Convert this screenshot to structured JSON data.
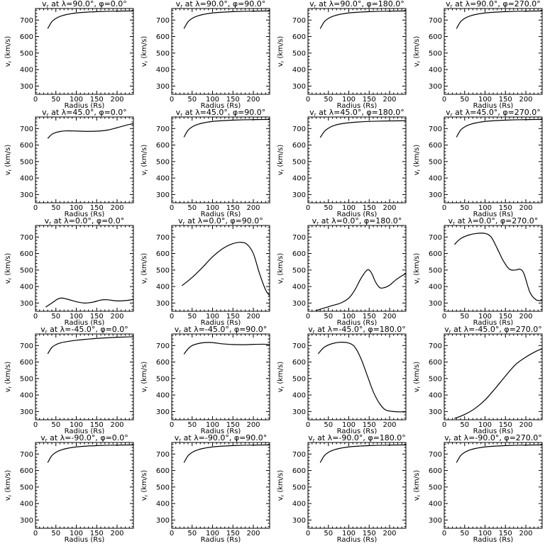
{
  "chart_data": [
    {
      "type": "line",
      "title": "v_r at λ=90.0°, φ=0.0°",
      "xlabel": "Radius (Rs)",
      "ylabel": "v_r (km/s)",
      "xlim": [
        0,
        240
      ],
      "ylim": [
        250,
        770
      ],
      "xticks": [
        0,
        50,
        100,
        150,
        200
      ],
      "yticks": [
        300,
        400,
        500,
        600,
        700
      ],
      "series": [
        {
          "x": [
            30,
            40,
            50,
            60,
            75,
            100,
            125,
            150,
            175,
            200,
            225,
            240
          ],
          "y": [
            648,
            690,
            710,
            722,
            733,
            743,
            748,
            751,
            753,
            754,
            755,
            755
          ]
        }
      ]
    },
    {
      "type": "line",
      "title": "v_r at λ=90.0°, φ=90.0°",
      "xlabel": "Radius (Rs)",
      "ylabel": "v_r (km/s)",
      "xlim": [
        0,
        240
      ],
      "ylim": [
        250,
        770
      ],
      "xticks": [
        0,
        50,
        100,
        150,
        200
      ],
      "yticks": [
        300,
        400,
        500,
        600,
        700
      ],
      "series": [
        {
          "x": [
            30,
            40,
            50,
            60,
            75,
            100,
            125,
            150,
            175,
            200,
            225,
            240
          ],
          "y": [
            648,
            690,
            710,
            722,
            733,
            743,
            748,
            751,
            753,
            754,
            755,
            755
          ]
        }
      ]
    },
    {
      "type": "line",
      "title": "v_r at λ=90.0°, φ=180.0°",
      "xlabel": "Radius (Rs)",
      "ylabel": "v_r (km/s)",
      "xlim": [
        0,
        240
      ],
      "ylim": [
        250,
        770
      ],
      "xticks": [
        0,
        50,
        100,
        150,
        200
      ],
      "yticks": [
        300,
        400,
        500,
        600,
        700
      ],
      "series": [
        {
          "x": [
            30,
            40,
            50,
            60,
            75,
            100,
            125,
            150,
            175,
            200,
            225,
            240
          ],
          "y": [
            648,
            690,
            710,
            722,
            733,
            743,
            748,
            751,
            753,
            754,
            755,
            755
          ]
        }
      ]
    },
    {
      "type": "line",
      "title": "v_r at λ=90.0°, φ=270.0°",
      "xlabel": "Radius (Rs)",
      "ylabel": "v_r (km/s)",
      "xlim": [
        0,
        240
      ],
      "ylim": [
        250,
        770
      ],
      "xticks": [
        0,
        50,
        100,
        150,
        200
      ],
      "yticks": [
        300,
        400,
        500,
        600,
        700
      ],
      "series": [
        {
          "x": [
            30,
            40,
            50,
            60,
            75,
            100,
            125,
            150,
            175,
            200,
            225,
            240
          ],
          "y": [
            648,
            690,
            710,
            722,
            733,
            743,
            748,
            751,
            753,
            754,
            755,
            755
          ]
        }
      ]
    },
    {
      "type": "line",
      "title": "v_r at λ=45.0°, φ=0.0°",
      "xlabel": "Radius (Rs)",
      "ylabel": "v_r (km/s)",
      "xlim": [
        0,
        240
      ],
      "ylim": [
        250,
        770
      ],
      "xticks": [
        0,
        50,
        100,
        150,
        200
      ],
      "yticks": [
        300,
        400,
        500,
        600,
        700
      ],
      "series": [
        {
          "x": [
            30,
            40,
            50,
            60,
            75,
            100,
            125,
            150,
            175,
            200,
            225,
            240
          ],
          "y": [
            640,
            665,
            676,
            682,
            686,
            685,
            683,
            684,
            690,
            705,
            722,
            730
          ]
        }
      ]
    },
    {
      "type": "line",
      "title": "v_r at λ=45.0°, φ=90.0°",
      "xlabel": "Radius (Rs)",
      "ylabel": "v_r (km/s)",
      "xlim": [
        0,
        240
      ],
      "ylim": [
        250,
        770
      ],
      "xticks": [
        0,
        50,
        100,
        150,
        200
      ],
      "yticks": [
        300,
        400,
        500,
        600,
        700
      ],
      "series": [
        {
          "x": [
            30,
            40,
            50,
            60,
            75,
            100,
            125,
            150,
            175,
            200,
            225,
            240
          ],
          "y": [
            648,
            690,
            710,
            722,
            733,
            743,
            748,
            751,
            753,
            754,
            755,
            755
          ]
        }
      ]
    },
    {
      "type": "line",
      "title": "v_r at λ=45.0°, φ=180.0°",
      "xlabel": "Radius (Rs)",
      "ylabel": "v_r (km/s)",
      "xlim": [
        0,
        240
      ],
      "ylim": [
        250,
        770
      ],
      "xticks": [
        0,
        50,
        100,
        150,
        200
      ],
      "yticks": [
        300,
        400,
        500,
        600,
        700
      ],
      "series": [
        {
          "x": [
            30,
            40,
            50,
            60,
            75,
            100,
            125,
            150,
            175,
            200,
            225,
            240
          ],
          "y": [
            645,
            682,
            702,
            715,
            726,
            735,
            740,
            743,
            745,
            746,
            747,
            748
          ]
        }
      ]
    },
    {
      "type": "line",
      "title": "v_r at λ=45.0°, φ=270.0°",
      "xlabel": "Radius (Rs)",
      "ylabel": "v_r (km/s)",
      "xlim": [
        0,
        240
      ],
      "ylim": [
        250,
        770
      ],
      "xticks": [
        0,
        50,
        100,
        150,
        200
      ],
      "yticks": [
        300,
        400,
        500,
        600,
        700
      ],
      "series": [
        {
          "x": [
            30,
            40,
            50,
            60,
            75,
            100,
            125,
            150,
            175,
            200,
            225,
            240
          ],
          "y": [
            648,
            690,
            710,
            722,
            733,
            743,
            748,
            751,
            753,
            754,
            755,
            755
          ]
        }
      ]
    },
    {
      "type": "line",
      "title": "v_r at λ=0.0°, φ=0.0°",
      "xlabel": "Radius (Rs)",
      "ylabel": "v_r (km/s)",
      "xlim": [
        0,
        240
      ],
      "ylim": [
        250,
        770
      ],
      "xticks": [
        0,
        50,
        100,
        150,
        200
      ],
      "yticks": [
        300,
        400,
        500,
        600,
        700
      ],
      "series": [
        {
          "x": [
            25,
            40,
            55,
            65,
            80,
            100,
            120,
            140,
            160,
            175,
            200,
            220,
            240
          ],
          "y": [
            275,
            300,
            325,
            330,
            322,
            308,
            300,
            305,
            318,
            320,
            313,
            315,
            322
          ]
        }
      ]
    },
    {
      "type": "line",
      "title": "v_r at λ=0.0°, φ=90.0°",
      "xlabel": "Radius (Rs)",
      "ylabel": "v_r (km/s)",
      "xlim": [
        0,
        240
      ],
      "ylim": [
        250,
        770
      ],
      "xticks": [
        0,
        50,
        100,
        150,
        200
      ],
      "yticks": [
        300,
        400,
        500,
        600,
        700
      ],
      "series": [
        {
          "x": [
            25,
            50,
            75,
            100,
            125,
            150,
            170,
            185,
            200,
            215,
            230,
            240
          ],
          "y": [
            405,
            455,
            515,
            580,
            630,
            660,
            668,
            655,
            600,
            480,
            380,
            345
          ]
        }
      ]
    },
    {
      "type": "line",
      "title": "v_r at λ=0.0°, φ=180.0°",
      "xlabel": "Radius (Rs)",
      "ylabel": "v_r (km/s)",
      "xlim": [
        0,
        240
      ],
      "ylim": [
        250,
        770
      ],
      "xticks": [
        0,
        50,
        100,
        150,
        200
      ],
      "yticks": [
        300,
        400,
        500,
        600,
        700
      ],
      "series": [
        {
          "x": [
            20,
            40,
            60,
            80,
            100,
            115,
            130,
            145,
            155,
            165,
            175,
            185,
            200,
            215,
            230,
            240
          ],
          "y": [
            255,
            270,
            285,
            300,
            330,
            380,
            450,
            500,
            485,
            430,
            395,
            392,
            408,
            440,
            465,
            478
          ]
        }
      ]
    },
    {
      "type": "line",
      "title": "v_r at λ=0.0°, φ=270.0°",
      "xlabel": "Radius (Rs)",
      "ylabel": "v_r (km/s)",
      "xlim": [
        0,
        240
      ],
      "ylim": [
        250,
        770
      ],
      "xticks": [
        0,
        50,
        100,
        150,
        200
      ],
      "yticks": [
        300,
        400,
        500,
        600,
        700
      ],
      "series": [
        {
          "x": [
            25,
            40,
            60,
            80,
            100,
            115,
            130,
            145,
            160,
            175,
            185,
            195,
            210,
            225,
            240
          ],
          "y": [
            655,
            690,
            712,
            722,
            722,
            700,
            630,
            555,
            505,
            500,
            505,
            480,
            365,
            320,
            315
          ]
        }
      ]
    },
    {
      "type": "line",
      "title": "v_r at λ=-45.0°, φ=0.0°",
      "xlabel": "Radius (Rs)",
      "ylabel": "v_r (km/s)",
      "xlim": [
        0,
        240
      ],
      "ylim": [
        250,
        770
      ],
      "xticks": [
        0,
        50,
        100,
        150,
        200
      ],
      "yticks": [
        300,
        400,
        500,
        600,
        700
      ],
      "series": [
        {
          "x": [
            30,
            40,
            50,
            60,
            75,
            100,
            125,
            150,
            175,
            200,
            225,
            240
          ],
          "y": [
            650,
            688,
            705,
            715,
            723,
            732,
            738,
            743,
            747,
            750,
            752,
            753
          ]
        }
      ]
    },
    {
      "type": "line",
      "title": "v_r at λ=-45.0°, φ=90.0°",
      "xlabel": "Radius (Rs)",
      "ylabel": "v_r (km/s)",
      "xlim": [
        0,
        240
      ],
      "ylim": [
        250,
        770
      ],
      "xticks": [
        0,
        50,
        100,
        150,
        200
      ],
      "yticks": [
        300,
        400,
        500,
        600,
        700
      ],
      "series": [
        {
          "x": [
            30,
            40,
            50,
            65,
            80,
            100,
            125,
            150,
            175,
            200,
            225,
            240
          ],
          "y": [
            648,
            680,
            700,
            712,
            718,
            718,
            710,
            706,
            705,
            707,
            708,
            706
          ]
        }
      ]
    },
    {
      "type": "line",
      "title": "v_r at λ=-45.0°, φ=180.0°",
      "xlabel": "Radius (Rs)",
      "ylabel": "v_r (km/s)",
      "xlim": [
        0,
        240
      ],
      "ylim": [
        250,
        770
      ],
      "xticks": [
        0,
        50,
        100,
        150,
        200
      ],
      "yticks": [
        300,
        400,
        500,
        600,
        700
      ],
      "series": [
        {
          "x": [
            25,
            40,
            60,
            80,
            100,
            115,
            130,
            145,
            160,
            175,
            190,
            210,
            230,
            240
          ],
          "y": [
            650,
            690,
            712,
            720,
            715,
            690,
            620,
            520,
            420,
            350,
            310,
            300,
            298,
            298
          ]
        }
      ]
    },
    {
      "type": "line",
      "title": "v_r at λ=-45.0°, φ=270.0°",
      "xlabel": "Radius (Rs)",
      "ylabel": "v_r (km/s)",
      "xlim": [
        0,
        240
      ],
      "ylim": [
        250,
        770
      ],
      "xticks": [
        0,
        50,
        100,
        150,
        200
      ],
      "yticks": [
        300,
        400,
        500,
        600,
        700
      ],
      "series": [
        {
          "x": [
            25,
            50,
            75,
            100,
            125,
            150,
            175,
            200,
            225,
            240
          ],
          "y": [
            258,
            282,
            318,
            370,
            440,
            515,
            585,
            630,
            665,
            680
          ]
        }
      ]
    },
    {
      "type": "line",
      "title": "v_r at λ=-90.0°, φ=0.0°",
      "xlabel": "Radius (Rs)",
      "ylabel": "v_r (km/s)",
      "xlim": [
        0,
        240
      ],
      "ylim": [
        250,
        770
      ],
      "xticks": [
        0,
        50,
        100,
        150,
        200
      ],
      "yticks": [
        300,
        400,
        500,
        600,
        700
      ],
      "series": [
        {
          "x": [
            30,
            40,
            50,
            60,
            75,
            100,
            125,
            150,
            175,
            200,
            225,
            240
          ],
          "y": [
            648,
            690,
            710,
            722,
            733,
            743,
            748,
            751,
            753,
            754,
            755,
            755
          ]
        }
      ]
    },
    {
      "type": "line",
      "title": "v_r at λ=-90.0°, φ=90.0°",
      "xlabel": "Radius (Rs)",
      "ylabel": "v_r (km/s)",
      "xlim": [
        0,
        240
      ],
      "ylim": [
        250,
        770
      ],
      "xticks": [
        0,
        50,
        100,
        150,
        200
      ],
      "yticks": [
        300,
        400,
        500,
        600,
        700
      ],
      "series": [
        {
          "x": [
            30,
            40,
            50,
            60,
            75,
            100,
            125,
            150,
            175,
            200,
            225,
            240
          ],
          "y": [
            648,
            690,
            710,
            722,
            733,
            743,
            748,
            751,
            753,
            754,
            755,
            755
          ]
        }
      ]
    },
    {
      "type": "line",
      "title": "v_r at λ=-90.0°, φ=180.0°",
      "xlabel": "Radius (Rs)",
      "ylabel": "v_r (km/s)",
      "xlim": [
        0,
        240
      ],
      "ylim": [
        250,
        770
      ],
      "xticks": [
        0,
        50,
        100,
        150,
        200
      ],
      "yticks": [
        300,
        400,
        500,
        600,
        700
      ],
      "series": [
        {
          "x": [
            30,
            40,
            50,
            60,
            75,
            100,
            125,
            150,
            175,
            200,
            225,
            240
          ],
          "y": [
            648,
            690,
            710,
            722,
            733,
            743,
            748,
            751,
            753,
            754,
            755,
            755
          ]
        }
      ]
    },
    {
      "type": "line",
      "title": "v_r at λ=-90.0°, φ=270.0°",
      "xlabel": "Radius (Rs)",
      "ylabel": "v_r (km/s)",
      "xlim": [
        0,
        240
      ],
      "ylim": [
        250,
        770
      ],
      "xticks": [
        0,
        50,
        100,
        150,
        200
      ],
      "yticks": [
        300,
        400,
        500,
        600,
        700
      ],
      "series": [
        {
          "x": [
            30,
            40,
            50,
            60,
            75,
            100,
            125,
            150,
            175,
            200,
            225,
            240
          ],
          "y": [
            648,
            690,
            710,
            722,
            733,
            743,
            748,
            751,
            753,
            754,
            755,
            755
          ]
        }
      ]
    }
  ]
}
